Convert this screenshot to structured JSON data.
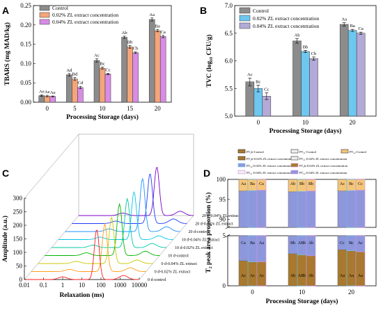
{
  "panels": {
    "A": {
      "letter": "A",
      "xlabel": "Processing Storage (days)",
      "ylabel": "TBARS (mg MAD/kg)"
    },
    "B": {
      "letter": "B",
      "xlabel": "Processing Storage (days)",
      "ylabel": "TVC (log₁₀ CFU/g)"
    },
    "C": {
      "letter": "C",
      "xlabel": "Relaxation (ms)",
      "ylabel": "Amplitude (a.u.)"
    },
    "D": {
      "letter": "D",
      "xlabel": "Processing Storage (days)",
      "ylabel": "T₂ peak area proportion (%)"
    }
  },
  "colors": {
    "control": "#8c8c8c",
    "zl002_A": "#f4a57a",
    "zl004_A": "#d88ce6",
    "zl002_B": "#6ec7ef",
    "zl004_B": "#b3aad7",
    "pt2b": "#a8792e",
    "pt21": "#eeeeee",
    "pt22": "#8e97dc"
  },
  "chart_data": [
    {
      "panel": "A",
      "type": "bar",
      "categories": [
        "0",
        "5",
        "10",
        "15",
        "20"
      ],
      "xlabel": "Processing Storage (days)",
      "ylabel": "TBARS (mg MAD/kg)",
      "ylim": [
        0,
        0.25
      ],
      "yticks": [
        "0.00",
        "0.05",
        "0.10",
        "0.15",
        "0.20",
        "0.25"
      ],
      "legend_position": "top-left",
      "series": [
        {
          "name": "Control",
          "color": "#8c8c8c",
          "values": [
            0.017,
            0.071,
            0.108,
            0.168,
            0.214
          ],
          "errors": [
            0.002,
            0.003,
            0.004,
            0.003,
            0.004
          ],
          "labels": [
            "Ae",
            "Ad",
            "Ac",
            "Ab",
            "Aa"
          ]
        },
        {
          "name": "0.02% ZL extract concentration",
          "color": "#f4a57a",
          "values": [
            0.016,
            0.06,
            0.088,
            0.143,
            0.185
          ],
          "errors": [
            0.002,
            0.004,
            0.003,
            0.004,
            0.003
          ],
          "labels": [
            "Ae",
            "Bd",
            "Bc",
            "Bb",
            "Ba"
          ]
        },
        {
          "name": "0.04% ZL extract concentration",
          "color": "#d88ce6",
          "values": [
            0.015,
            0.038,
            0.073,
            0.128,
            0.17
          ],
          "errors": [
            0.001,
            0.003,
            0.002,
            0.002,
            0.003
          ],
          "labels": [
            "Ae",
            "Cd",
            "Cc",
            "Cb",
            "Ca"
          ]
        }
      ]
    },
    {
      "panel": "B",
      "type": "bar",
      "categories": [
        "0",
        "10",
        "20"
      ],
      "xlabel": "Processing Storage (days)",
      "ylabel": "TVC (log₁₀ CFU/g)",
      "ylim": [
        5.0,
        7.0
      ],
      "yticks": [
        "5.0",
        "5.5",
        "6.0",
        "6.5",
        "7.0"
      ],
      "legend_position": "top-left",
      "series": [
        {
          "name": "Control",
          "color": "#8c8c8c",
          "values": [
            5.62,
            6.36,
            6.66
          ],
          "errors": [
            0.07,
            0.04,
            0.03
          ],
          "labels": [
            "Ac",
            "Ab",
            "Aa"
          ]
        },
        {
          "name": "0.02% ZL extract concentration",
          "color": "#6ec7ef",
          "values": [
            5.5,
            6.17,
            6.55
          ],
          "errors": [
            0.06,
            0.02,
            0.02
          ],
          "labels": [
            "Bc",
            "Bb",
            "Ba"
          ]
        },
        {
          "name": "0.04% ZL extract concentration",
          "color": "#b3aad7",
          "values": [
            5.36,
            6.04,
            6.5
          ],
          "errors": [
            0.06,
            0.03,
            0.02
          ],
          "labels": [
            "Cc",
            "Cb",
            "Ca"
          ]
        }
      ]
    },
    {
      "panel": "C",
      "type": "line",
      "xlabel": "Relaxation (ms)",
      "ylabel": "Amplitude (a.u.)",
      "xscale": "log",
      "xlim": [
        0.01,
        10000
      ],
      "xticks": [
        "0.01",
        "0.1",
        "1",
        "10",
        "100",
        "1000",
        "10000"
      ],
      "ylim": [
        0,
        300
      ],
      "yticks": [
        "0",
        "50",
        "100",
        "150",
        "200",
        "250",
        "300"
      ],
      "view": "3d-waterfall",
      "series": [
        {
          "name": "0 d-control",
          "color": "#ff1a1a",
          "peaks": [
            [
              1.0,
              10
            ],
            [
              60,
              185
            ],
            [
              1500,
              15
            ]
          ]
        },
        {
          "name": "0 d-0.02% ZL extract",
          "color": "#ff9e1a",
          "peaks": [
            [
              1.0,
              8
            ],
            [
              70,
              175
            ],
            [
              1500,
              14
            ]
          ]
        },
        {
          "name": "0 d-0.04% ZL extract",
          "color": "#c8c800",
          "peaks": [
            [
              1.0,
              8
            ],
            [
              70,
              170
            ],
            [
              1500,
              13
            ]
          ]
        },
        {
          "name": "10 d-control",
          "color": "#00b400",
          "peaks": [
            [
              1.5,
              10
            ],
            [
              80,
              190
            ],
            [
              1800,
              16
            ]
          ]
        },
        {
          "name": "10 d-0.02% ZL extract",
          "color": "#00c8a0",
          "peaks": [
            [
              1.5,
              9
            ],
            [
              90,
              180
            ],
            [
              1800,
              15
            ]
          ]
        },
        {
          "name": "10 d-0.04% ZL extract",
          "color": "#00c8e6",
          "peaks": [
            [
              1.5,
              9
            ],
            [
              90,
              175
            ],
            [
              1800,
              14
            ]
          ]
        },
        {
          "name": "20 d-control",
          "color": "#1e90ff",
          "peaks": [
            [
              2.0,
              10
            ],
            [
              110,
              195
            ],
            [
              2000,
              18
            ]
          ]
        },
        {
          "name": "20 d-0.02% ZL extract",
          "color": "#1e3cff",
          "peaks": [
            [
              2.0,
              9
            ],
            [
              120,
              185
            ],
            [
              2000,
              17
            ]
          ]
        },
        {
          "name": "20 d-0.04% ZL extract",
          "color": "#7800c8",
          "peaks": [
            [
              2.0,
              9
            ],
            [
              120,
              180
            ],
            [
              2000,
              16
            ]
          ]
        }
      ]
    },
    {
      "panel": "D",
      "type": "bar",
      "stacked": true,
      "categories": [
        "0",
        "10",
        "20"
      ],
      "xlabel": "Processing Storage (days)",
      "ylabel": "T₂ peak area proportion (%)",
      "ylim": [
        0,
        100
      ],
      "axis_break": [
        5,
        88
      ],
      "yticks_lower": [
        "0",
        "5"
      ],
      "yticks_upper": [
        "90",
        "95",
        "100"
      ],
      "legend_position": "top",
      "legend": [
        "PT₂b-Control",
        "PT₂₁-Control",
        "PT₂₂-Control",
        "PT₂b-0.02% ZL extract concentration",
        "PT₂₁-0.02% ZL extract concentration",
        "PT₂₂-0.02% ZL extract concentration",
        "PT₂b-0.04% ZL extract concentration",
        "PT₂₁-0.04% ZL extract concentration",
        "PT₂₂-0.04% ZL extract concentration"
      ],
      "treatments": [
        "Control",
        "0.02% ZL extract concentration",
        "0.04% ZL extract concentration"
      ],
      "PT2b": [
        [
          2.5,
          2.4,
          2.4
        ],
        [
          3.2,
          3.1,
          3.0
        ],
        [
          3.6,
          3.5,
          3.4
        ]
      ],
      "PT21": [
        [
          94.6,
          94.8,
          94.9
        ],
        [
          93.7,
          93.9,
          94.1
        ],
        [
          93.5,
          93.7,
          93.9
        ]
      ],
      "PT22": [
        [
          2.9,
          2.8,
          2.7
        ],
        [
          3.1,
          3.0,
          2.9
        ],
        [
          2.9,
          2.8,
          2.7
        ]
      ],
      "labels_PT2b": [
        [
          "Ac",
          "Ac",
          "Ac"
        ],
        [
          "Ab",
          "ABb",
          "Ab"
        ],
        [
          "Aa",
          "Aa",
          "Aa"
        ]
      ],
      "labels_PT21": [
        [
          "Ca",
          "Ba",
          "Aa"
        ],
        [
          "Bb",
          "ABb",
          "Ab"
        ],
        [
          "Cc",
          "Bc",
          "Ac"
        ]
      ],
      "labels_PT22": [
        [
          "Aa",
          "Ba",
          "Ca"
        ],
        [
          "Ab",
          "Bb",
          "Bb"
        ],
        [
          "Ac",
          "Bc",
          "Cc"
        ]
      ]
    }
  ]
}
